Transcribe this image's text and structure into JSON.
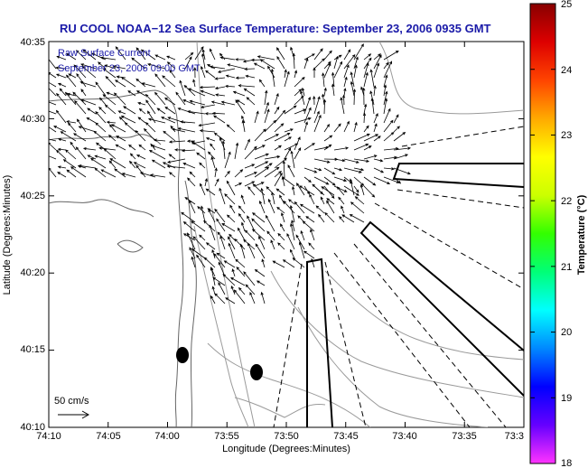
{
  "title": "RU COOL  NOAA−12  Sea Surface Temperature:  September 23, 2006 0935 GMT",
  "legend": {
    "line1": "Raw Surface Current",
    "line2": "September 23, 2006 09:00 GMT"
  },
  "scale_label": "50 cm/s",
  "map": {
    "xlabel": "Longitude (Degrees:Minutes)",
    "ylabel": "Latitude (Degrees:Minutes)",
    "x_ticks": [
      "74:10",
      "74:05",
      "74:00",
      "73:55",
      "73:50",
      "73:45",
      "73:40",
      "73:35",
      "73:3"
    ],
    "y_ticks": [
      "40:35",
      "40:30",
      "40:25",
      "40:20",
      "40:15",
      "40:10"
    ],
    "colors": {
      "land_line": "#666666",
      "contour": "#9a9a9a",
      "arrow": "#000000",
      "shipping_lane": "#000000"
    }
  },
  "colorbar": {
    "label": "Temperature (°C)",
    "ticks": [
      "25",
      "24",
      "23",
      "22",
      "21",
      "20",
      "19",
      "18"
    ],
    "range": [
      18,
      25
    ],
    "gradient_colors": [
      "#ff33ff",
      "#6600ff",
      "#0000ff",
      "#0088ff",
      "#00ffff",
      "#00ff77",
      "#33ff00",
      "#ccff00",
      "#ffff00",
      "#ffaa00",
      "#ff4400",
      "#dd0000",
      "#880000"
    ]
  }
}
